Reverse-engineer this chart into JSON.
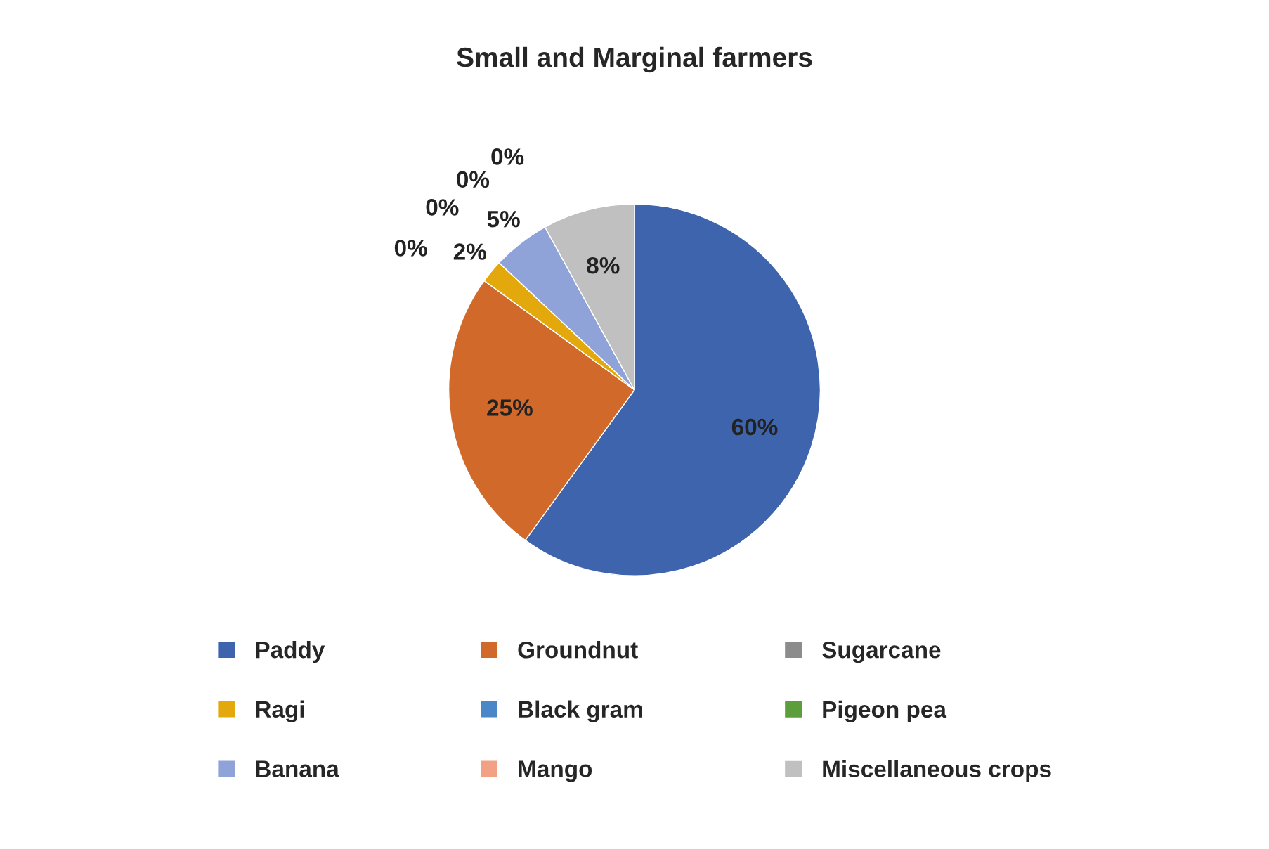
{
  "chart_data": {
    "type": "pie",
    "title": "Small and Marginal farmers",
    "categories": [
      "Paddy",
      "Groundnut",
      "Sugarcane",
      "Ragi",
      "Black gram",
      "Pigeon pea",
      "Banana",
      "Mango",
      "Miscellaneous crops"
    ],
    "values": [
      60,
      25,
      0,
      2,
      0,
      0,
      5,
      0,
      8
    ],
    "colors": [
      "#3d64ad",
      "#d0692a",
      "#8c8c8c",
      "#e3a80b",
      "#4a86c8",
      "#5b9e3a",
      "#8fa3d9",
      "#f2a184",
      "#c0c0c0"
    ],
    "value_labels": [
      "60%",
      "25%",
      "0%",
      "2%",
      "0%",
      "0%",
      "5%",
      "0%",
      "8%"
    ],
    "legend": "bottom"
  }
}
